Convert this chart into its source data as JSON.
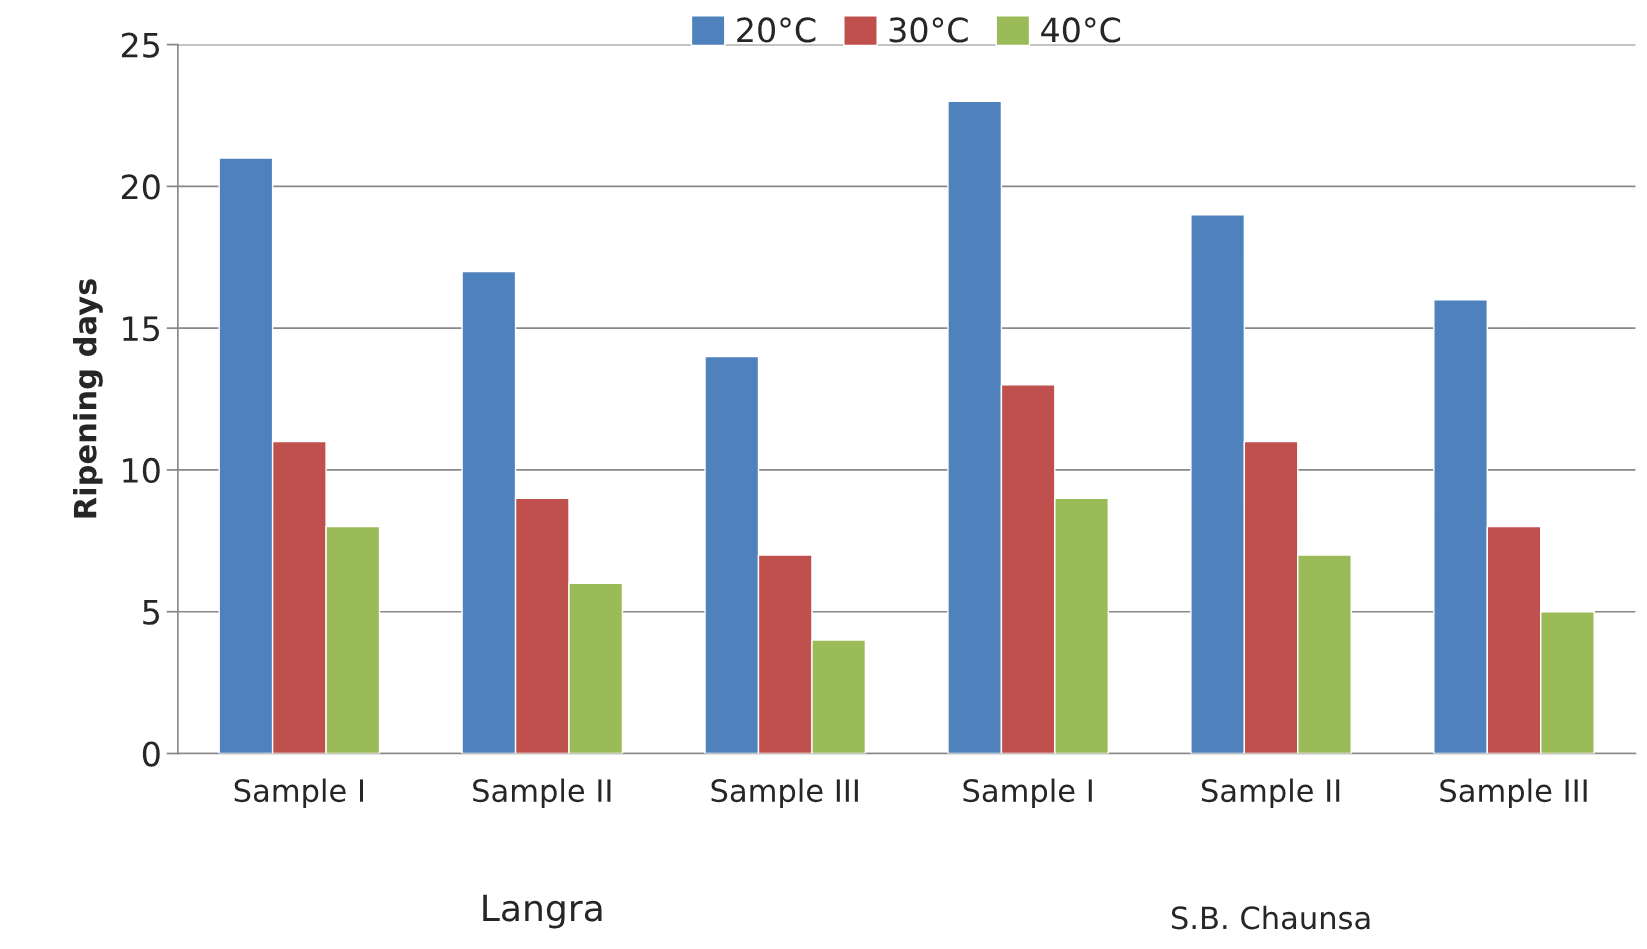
{
  "chart_data": {
    "type": "bar",
    "ylabel": "Ripening days",
    "categories": [
      "Sample I",
      "Sample II",
      "Sample III",
      "Sample I",
      "Sample II",
      "Sample III"
    ],
    "series": [
      {
        "name": "20°C",
        "color": "#4f81bd",
        "values": [
          21,
          17,
          14,
          23,
          19,
          16
        ]
      },
      {
        "name": "30°C",
        "color": "#c0504d",
        "values": [
          11,
          9,
          7,
          13,
          11,
          8
        ]
      },
      {
        "name": "40°C",
        "color": "#9bbb59",
        "values": [
          8,
          6,
          4,
          9,
          7,
          5
        ]
      }
    ],
    "ylim": [
      0,
      25
    ],
    "yticks": [
      0,
      5,
      10,
      15,
      20,
      25
    ],
    "grid": "y",
    "legend": "top",
    "annotations": [
      "Langra",
      "S.B. Chaunsa"
    ]
  }
}
